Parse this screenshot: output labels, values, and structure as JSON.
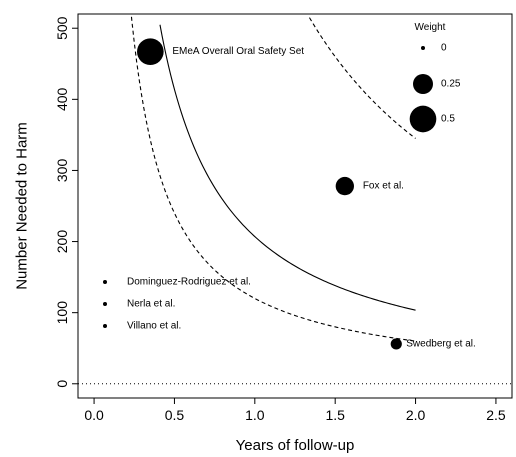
{
  "chart_data": {
    "type": "scatter",
    "xlabel": "Years of follow-up",
    "ylabel": "Number Needed to Harm",
    "xlim": [
      -0.1,
      2.6
    ],
    "ylim": [
      -20,
      520
    ],
    "x_ticks": [
      0.0,
      0.5,
      1.0,
      1.5,
      2.0,
      2.5
    ],
    "x_tick_labels": [
      "0.0",
      "0.5",
      "1.0",
      "1.5",
      "2.0",
      "2.5"
    ],
    "y_ticks": [
      0,
      100,
      200,
      300,
      400,
      500
    ],
    "y_tick_labels": [
      "0",
      "100",
      "200",
      "300",
      "400",
      "500"
    ],
    "reference_line": {
      "y": 0,
      "style": "dotted"
    },
    "points": [
      {
        "label": "EMeA Overall Oral Safety Set",
        "x": 0.35,
        "y": 467,
        "weight": 0.5
      },
      {
        "label": "Fox et al.",
        "x": 1.56,
        "y": 278,
        "weight": 0.2
      },
      {
        "label": "Swedberg et al.",
        "x": 1.88,
        "y": 56,
        "weight": 0.05
      },
      {
        "label": "Dominguez-Rodriguez et al.",
        "x": null,
        "y": null,
        "weight": 0.0
      },
      {
        "label": "Nerla et al.",
        "x": null,
        "y": null,
        "weight": 0.0
      },
      {
        "label": "Villano et al.",
        "x": null,
        "y": null,
        "weight": 0.0
      }
    ],
    "curves": [
      {
        "style": "solid",
        "k": 207,
        "x_range": [
          0.41,
          2.0
        ]
      },
      {
        "style": "dashed",
        "k": 120,
        "x_range": [
          0.22,
          2.0
        ]
      },
      {
        "style": "dashed",
        "k": 690,
        "x_range": [
          1.34,
          2.0
        ]
      }
    ],
    "legend": {
      "title": "Weight",
      "position": "top-right",
      "entries": [
        {
          "label": "0",
          "weight": 0.0
        },
        {
          "label": "0.25",
          "weight": 0.25
        },
        {
          "label": "0.5",
          "weight": 0.5
        }
      ]
    }
  }
}
